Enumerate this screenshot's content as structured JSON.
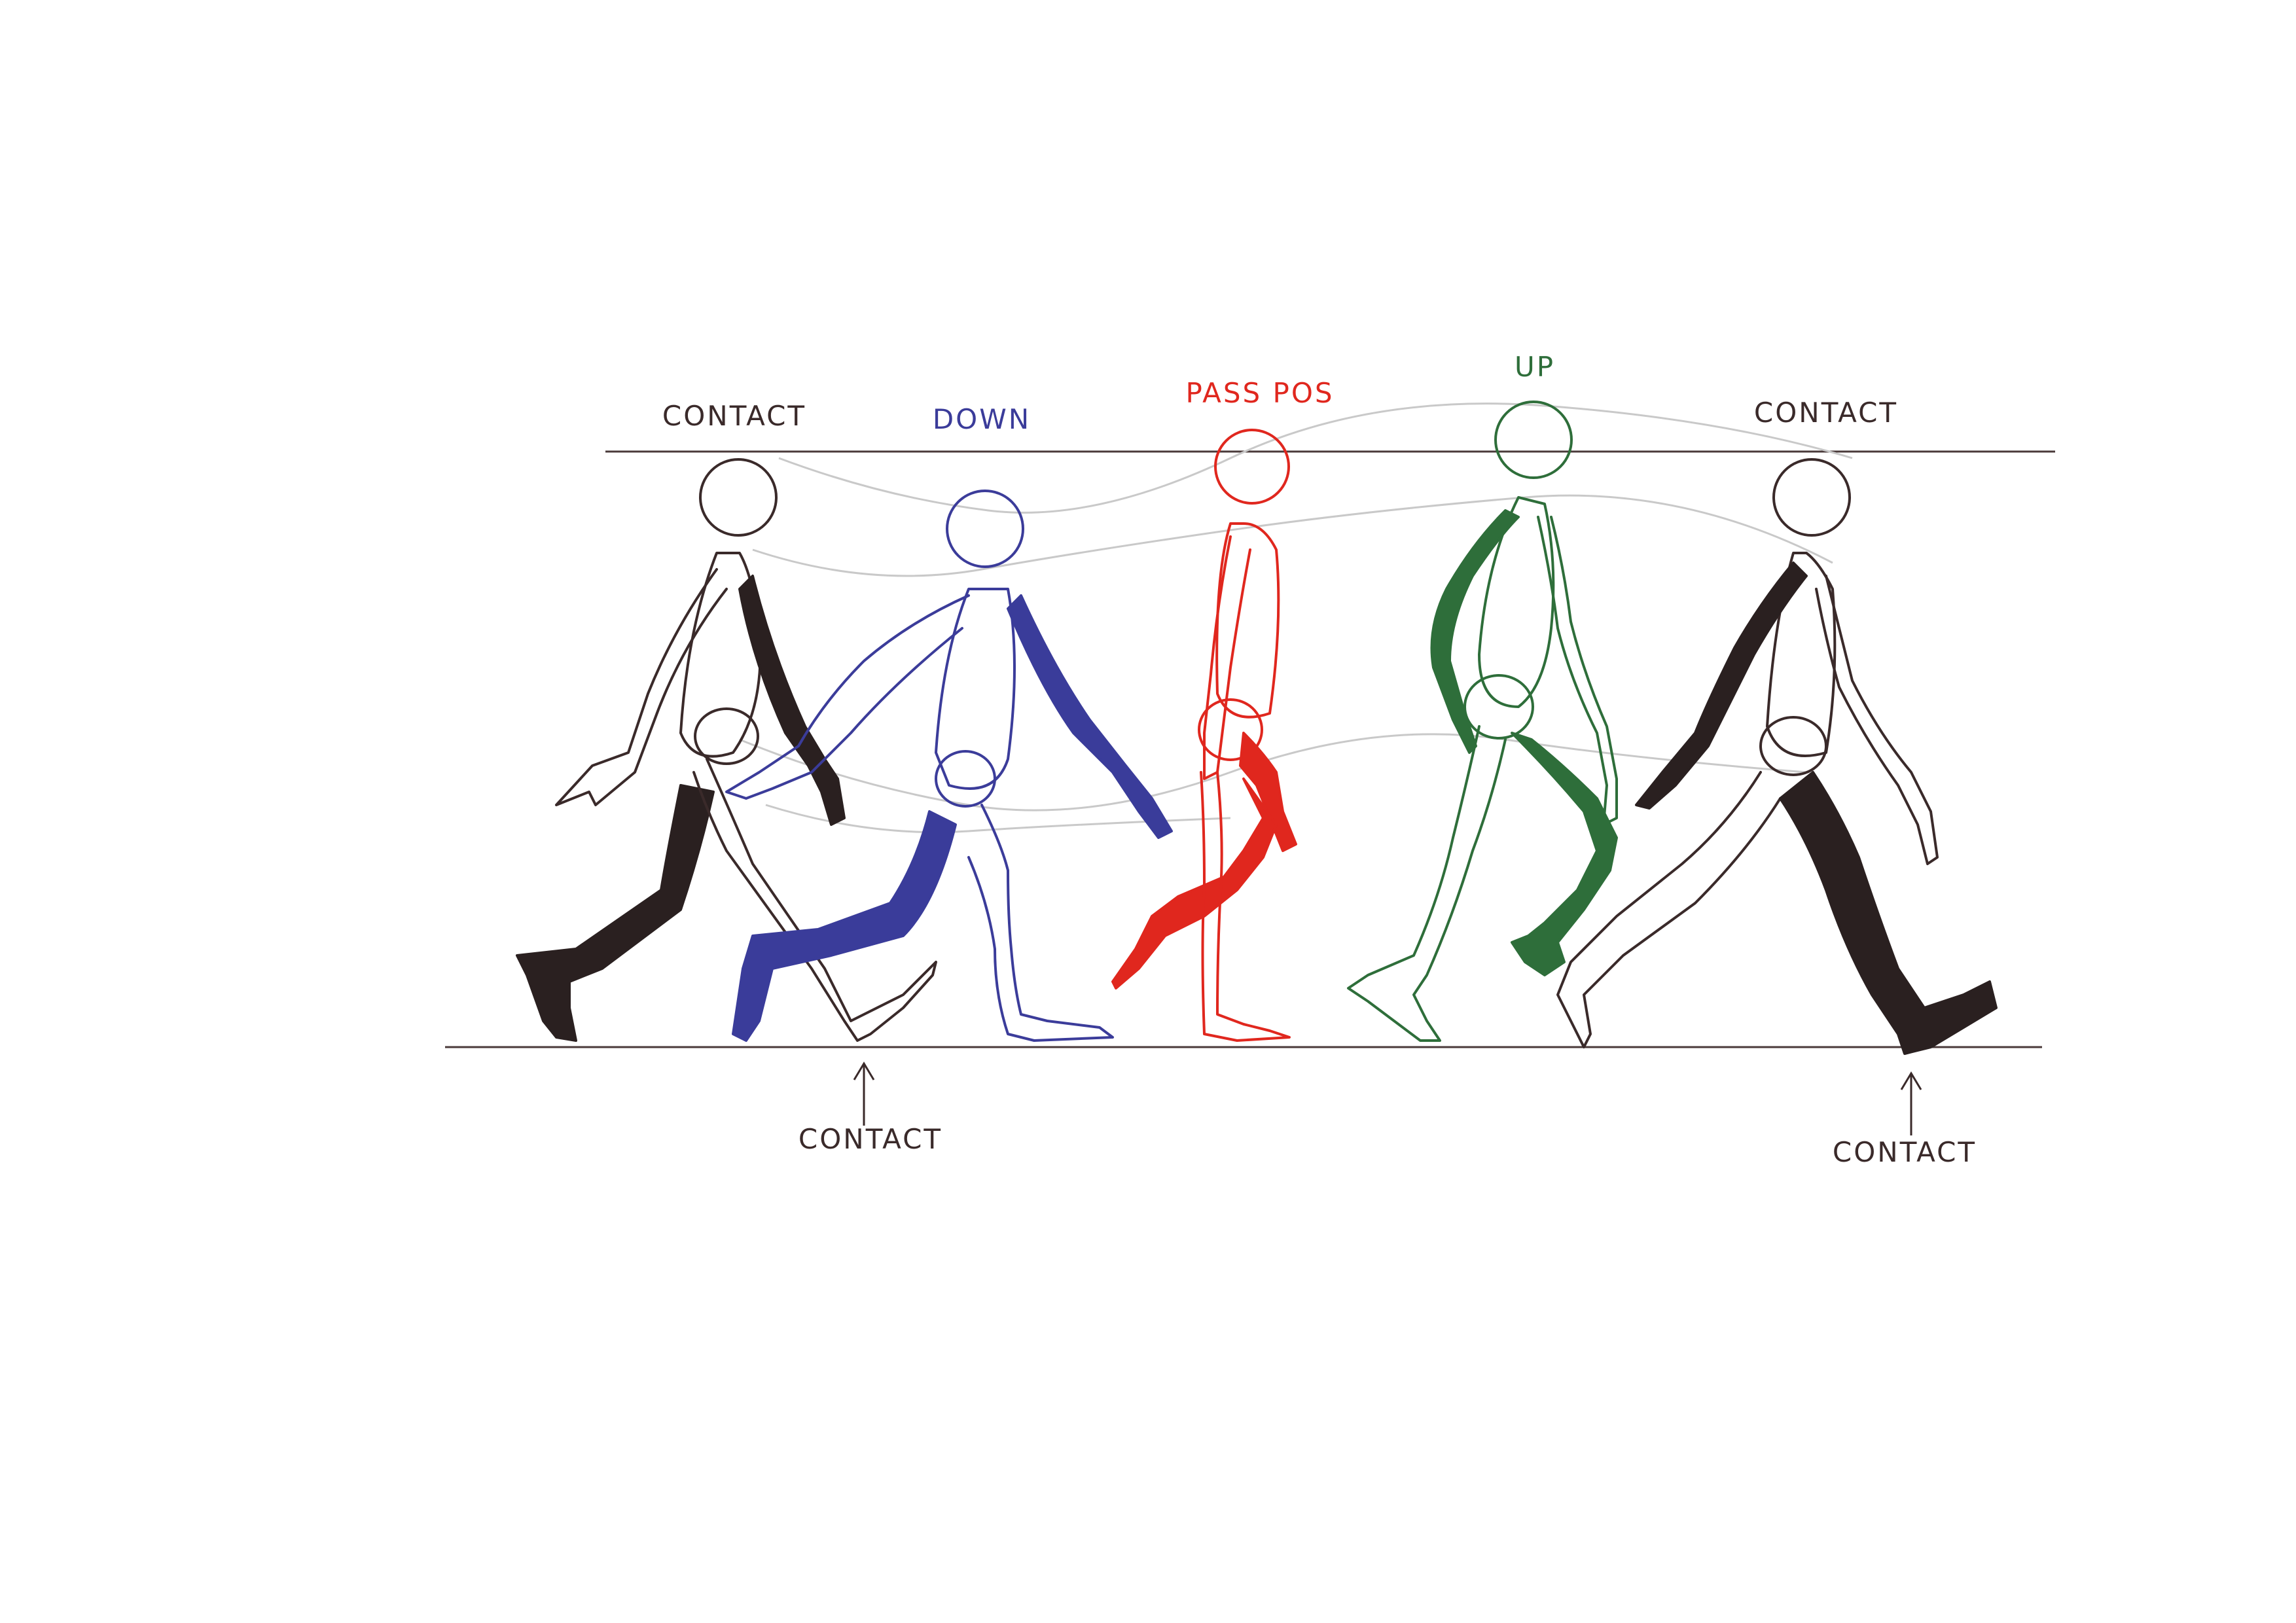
{
  "poses": [
    {
      "label": "CONTACT",
      "color": "#3a2a2a"
    },
    {
      "label": "DOWN",
      "color": "#3b3c9a"
    },
    {
      "label": "PASS POS",
      "color": "#e0271e"
    },
    {
      "label": "UP",
      "color": "#2e6e3a"
    },
    {
      "label": "CONTACT",
      "color": "#3a2a2a"
    }
  ],
  "contact_notes": [
    "CONTACT",
    "CONTACT"
  ]
}
